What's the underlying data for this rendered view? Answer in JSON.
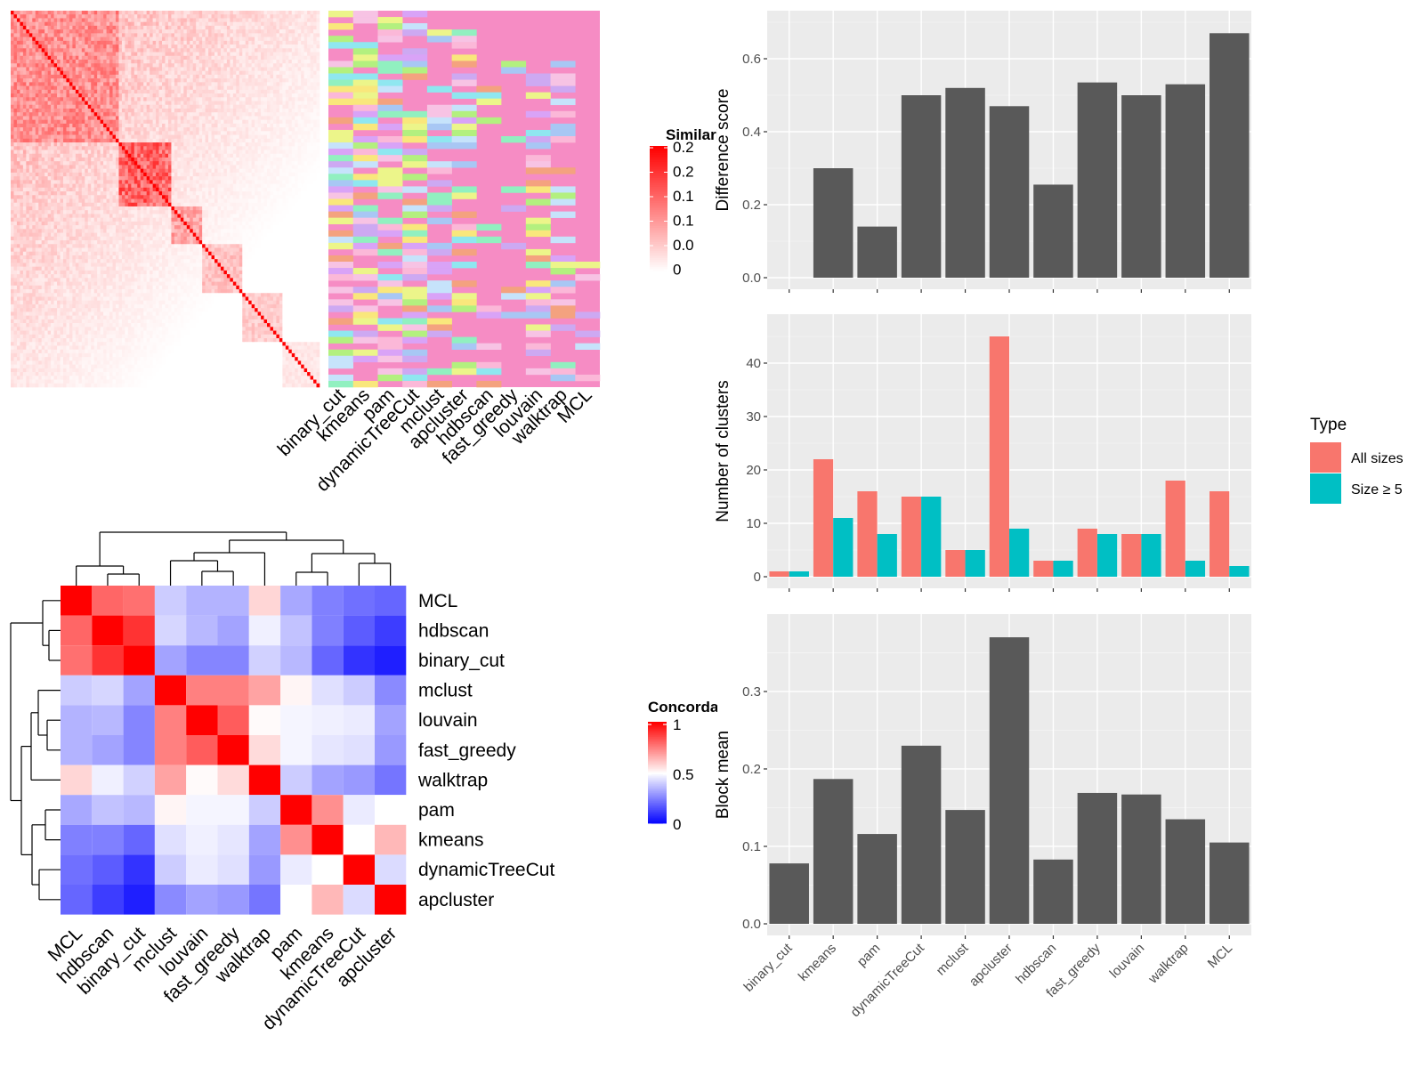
{
  "methods": [
    "binary_cut",
    "kmeans",
    "pam",
    "dynamicTreeCut",
    "mclust",
    "apcluster",
    "hdbscan",
    "fast_greedy",
    "louvain",
    "walktrap",
    "MCL"
  ],
  "colors": {
    "bar": "#595959",
    "panel_bg": "#ebebeb",
    "all_sizes": "#f8766d",
    "size_ge_5": "#00bfc4",
    "sim_high": "#ff0000",
    "conc_low": "#0000ff",
    "class_main": "#f68cc4"
  },
  "similarity_legend": {
    "title": "Similarity",
    "labels": [
      "0.2",
      "0.2",
      "0.1",
      "0.1",
      "0.0",
      "0"
    ]
  },
  "concordance_legend": {
    "title": "Concordance",
    "labels": [
      "1",
      "0.5",
      "0"
    ]
  },
  "chart_data": [
    {
      "type": "heatmap",
      "title": "",
      "legend_title": "Similarity",
      "columns": [
        "binary_cut",
        "kmeans",
        "pam",
        "dynamicTreeCut",
        "mclust",
        "apcluster",
        "hdbscan",
        "fast_greedy",
        "louvain",
        "walktrap",
        "MCL"
      ],
      "note_range": [
        0,
        0.2
      ]
    },
    {
      "type": "bar",
      "categories": [
        "binary_cut",
        "kmeans",
        "pam",
        "dynamicTreeCut",
        "mclust",
        "apcluster",
        "hdbscan",
        "fast_greedy",
        "louvain",
        "walktrap",
        "MCL"
      ],
      "values": [
        0.0,
        0.3,
        0.14,
        0.5,
        0.52,
        0.47,
        0.255,
        0.535,
        0.5,
        0.53,
        0.67
      ],
      "ylabel": "Difference score",
      "ylim": [
        0,
        0.7
      ],
      "yticks": [
        0.0,
        0.2,
        0.4,
        0.6
      ],
      "ytick_labels": [
        "0.0",
        "0.2",
        "0.4",
        "0.6"
      ],
      "grid": true
    },
    {
      "type": "bar",
      "categories": [
        "binary_cut",
        "kmeans",
        "pam",
        "dynamicTreeCut",
        "mclust",
        "apcluster",
        "hdbscan",
        "fast_greedy",
        "louvain",
        "walktrap",
        "MCL"
      ],
      "series": [
        {
          "name": "All sizes",
          "values": [
            1,
            22,
            16,
            15,
            5,
            45,
            3,
            9,
            8,
            18,
            16
          ]
        },
        {
          "name": "Size ≥ 5",
          "values": [
            1,
            11,
            8,
            15,
            5,
            9,
            3,
            8,
            8,
            3,
            2
          ]
        }
      ],
      "ylabel": "Number of clusters",
      "ylim": [
        0,
        47
      ],
      "yticks": [
        0,
        10,
        20,
        30,
        40
      ],
      "ytick_labels": [
        "0",
        "10",
        "20",
        "30",
        "40"
      ],
      "legend_title": "Type",
      "legend_position": "right",
      "grid": true
    },
    {
      "type": "bar",
      "categories": [
        "binary_cut",
        "kmeans",
        "pam",
        "dynamicTreeCut",
        "mclust",
        "apcluster",
        "hdbscan",
        "fast_greedy",
        "louvain",
        "walktrap",
        "MCL"
      ],
      "values": [
        0.078,
        0.187,
        0.116,
        0.23,
        0.147,
        0.37,
        0.083,
        0.169,
        0.167,
        0.135,
        0.105
      ],
      "ylabel": "Block mean",
      "ylim": [
        0,
        0.385
      ],
      "yticks": [
        0.0,
        0.1,
        0.2,
        0.3
      ],
      "ytick_labels": [
        "0.0",
        "0.1",
        "0.2",
        "0.3"
      ],
      "grid": true
    },
    {
      "type": "heatmap",
      "legend_title": "Concordance",
      "rows": [
        "MCL",
        "hdbscan",
        "binary_cut",
        "mclust",
        "louvain",
        "fast_greedy",
        "walktrap",
        "pam",
        "kmeans",
        "dynamicTreeCut",
        "apcluster"
      ],
      "columns": [
        "MCL",
        "hdbscan",
        "binary_cut",
        "mclust",
        "louvain",
        "fast_greedy",
        "walktrap",
        "pam",
        "kmeans",
        "dynamicTreeCut",
        "apcluster"
      ],
      "values": [
        [
          1.0,
          0.8,
          0.78,
          0.4,
          0.35,
          0.35,
          0.58,
          0.33,
          0.25,
          0.22,
          0.2
        ],
        [
          0.8,
          1.0,
          0.9,
          0.42,
          0.36,
          0.32,
          0.47,
          0.38,
          0.25,
          0.18,
          0.12
        ],
        [
          0.78,
          0.9,
          1.0,
          0.32,
          0.26,
          0.26,
          0.41,
          0.36,
          0.2,
          0.1,
          0.06
        ],
        [
          0.4,
          0.42,
          0.32,
          1.0,
          0.75,
          0.75,
          0.68,
          0.52,
          0.44,
          0.4,
          0.27
        ],
        [
          0.35,
          0.36,
          0.26,
          0.75,
          1.0,
          0.82,
          0.51,
          0.48,
          0.47,
          0.46,
          0.32
        ],
        [
          0.35,
          0.32,
          0.26,
          0.75,
          0.82,
          1.0,
          0.57,
          0.48,
          0.45,
          0.44,
          0.3
        ],
        [
          0.58,
          0.47,
          0.41,
          0.68,
          0.51,
          0.57,
          1.0,
          0.4,
          0.32,
          0.3,
          0.23
        ],
        [
          0.33,
          0.38,
          0.36,
          0.52,
          0.48,
          0.48,
          0.4,
          1.0,
          0.72,
          0.46,
          0.5
        ],
        [
          0.25,
          0.25,
          0.2,
          0.44,
          0.47,
          0.45,
          0.32,
          0.72,
          1.0,
          0.5,
          0.64
        ],
        [
          0.22,
          0.18,
          0.1,
          0.4,
          0.46,
          0.44,
          0.3,
          0.46,
          0.5,
          1.0,
          0.43
        ],
        [
          0.2,
          0.12,
          0.06,
          0.27,
          0.32,
          0.3,
          0.23,
          0.5,
          0.64,
          0.43,
          1.0
        ]
      ],
      "color_range": [
        0,
        1
      ]
    }
  ]
}
